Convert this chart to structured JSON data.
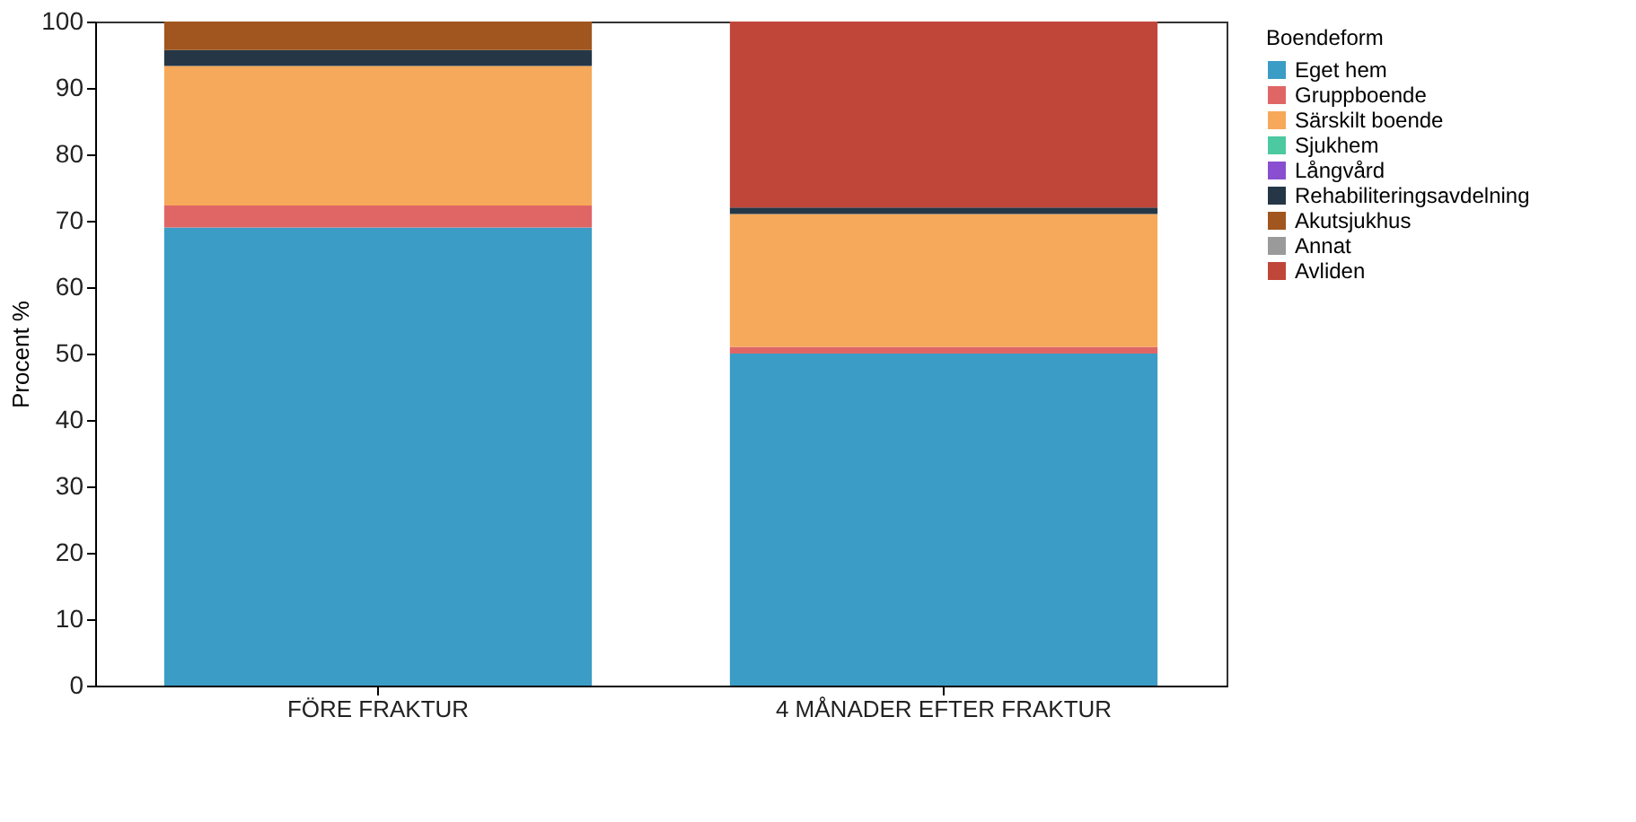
{
  "chart_data": {
    "type": "bar",
    "stacked": true,
    "ylabel": "Procent %",
    "legend_title": "Boendeform",
    "legend": "right",
    "categories": [
      "FÖRE FRAKTUR",
      "4 MÅNADER EFTER FRAKTUR"
    ],
    "series": [
      {
        "name": "Eget hem",
        "color": "#3b9cc6",
        "values": [
          69,
          50
        ]
      },
      {
        "name": "Gruppboende",
        "color": "#e06666",
        "values": [
          3.3,
          1
        ]
      },
      {
        "name": "Särskilt boende",
        "color": "#f6a95a",
        "values": [
          21,
          20
        ]
      },
      {
        "name": "Sjukhem",
        "color": "#4cc9a0",
        "values": [
          0,
          0
        ]
      },
      {
        "name": "Långvård",
        "color": "#8a4fd0",
        "values": [
          0,
          0
        ]
      },
      {
        "name": "Rehabiliteringsavdelning",
        "color": "#253746",
        "values": [
          2.4,
          1
        ]
      },
      {
        "name": "Akutsjukhus",
        "color": "#a0561e",
        "values": [
          4.3,
          0
        ]
      },
      {
        "name": "Annat",
        "color": "#9a9a9a",
        "values": [
          0,
          0
        ]
      },
      {
        "name": "Avliden",
        "color": "#c0463a",
        "values": [
          0,
          28
        ]
      }
    ],
    "ylim": [
      0,
      100
    ],
    "yticks": [
      0,
      10,
      20,
      30,
      40,
      50,
      60,
      70,
      80,
      90,
      100
    ],
    "grid": false
  }
}
